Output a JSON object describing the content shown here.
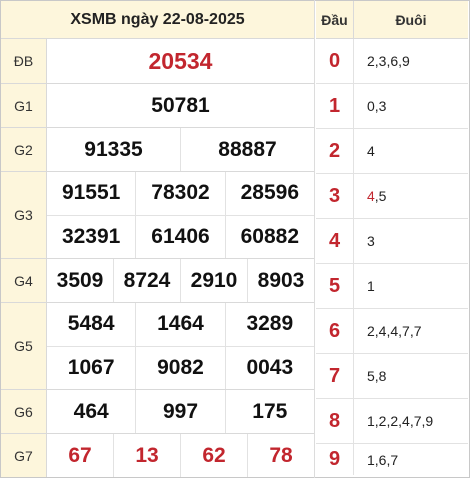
{
  "title": "XSMB ngày 22-08-2025",
  "results": {
    "db": {
      "label": "ĐB",
      "numbers": [
        "20534"
      ]
    },
    "g1": {
      "label": "G1",
      "numbers": [
        "50781"
      ]
    },
    "g2": {
      "label": "G2",
      "numbers": [
        "91335",
        "88887"
      ]
    },
    "g3": {
      "label": "G3",
      "numbers": [
        "91551",
        "78302",
        "28596",
        "32391",
        "61406",
        "60882"
      ]
    },
    "g4": {
      "label": "G4",
      "numbers": [
        "3509",
        "8724",
        "2910",
        "8903"
      ]
    },
    "g5": {
      "label": "G5",
      "numbers": [
        "5484",
        "1464",
        "3289",
        "1067",
        "9082",
        "0043"
      ]
    },
    "g6": {
      "label": "G6",
      "numbers": [
        "464",
        "997",
        "175"
      ]
    },
    "g7": {
      "label": "G7",
      "numbers": [
        "67",
        "13",
        "62",
        "78"
      ]
    }
  },
  "dauduoi": {
    "head_label": "Đầu",
    "tail_label": "Đuôi",
    "rows": [
      {
        "dau": "0",
        "duoi": "2,3,6,9"
      },
      {
        "dau": "1",
        "duoi": "0,3"
      },
      {
        "dau": "2",
        "duoi": "4"
      },
      {
        "dau": "3",
        "duoi_hl": "4",
        "duoi_rest": ",5"
      },
      {
        "dau": "4",
        "duoi": "3"
      },
      {
        "dau": "5",
        "duoi": "1"
      },
      {
        "dau": "6",
        "duoi": "2,4,4,7,7"
      },
      {
        "dau": "7",
        "duoi": "5,8"
      },
      {
        "dau": "8",
        "duoi": "1,2,2,4,7,9"
      },
      {
        "dau": "9",
        "duoi": "1,6,7"
      }
    ]
  },
  "colors": {
    "accent_red": "#c2262e",
    "header_bg": "#fdf6dc",
    "border": "#d9d9d9"
  }
}
